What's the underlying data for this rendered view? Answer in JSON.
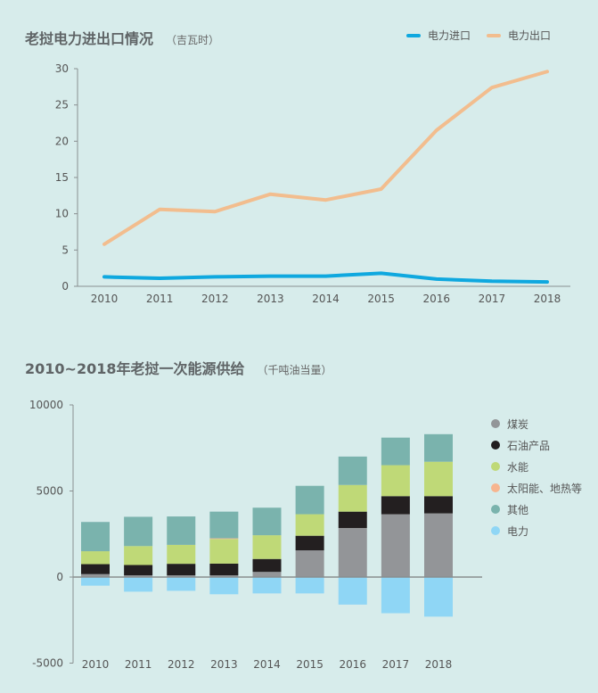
{
  "chart_data": [
    {
      "type": "line",
      "title": "老挝电力进出口情况",
      "unit": "（吉瓦时）",
      "xlabel": "",
      "ylabel": "",
      "ylim": [
        0,
        30
      ],
      "yticks": [
        "0",
        "5",
        "10",
        "15",
        "20",
        "25",
        "30"
      ],
      "categories": [
        "2010",
        "2011",
        "2012",
        "2013",
        "2014",
        "2015",
        "2016",
        "2017",
        "2018"
      ],
      "legend_position": "top-right",
      "series": [
        {
          "name": "电力进口",
          "color": "#0fa8df",
          "values": [
            1.3,
            1.1,
            1.3,
            1.4,
            1.4,
            1.8,
            1.0,
            0.7,
            0.6
          ]
        },
        {
          "name": "电力出口",
          "color": "#f2bd8e",
          "values": [
            5.8,
            10.6,
            10.3,
            12.7,
            11.9,
            13.4,
            21.5,
            27.4,
            29.6
          ]
        }
      ]
    },
    {
      "type": "bar",
      "stacked": true,
      "title": "2010~2018年老挝一次能源供给",
      "unit": "（千吨油当量）",
      "xlabel": "",
      "ylabel": "",
      "ylim": [
        -5000,
        10000
      ],
      "yticks": [
        "-5000",
        "0",
        "5000",
        "10000"
      ],
      "categories": [
        "2010",
        "2011",
        "2012",
        "2013",
        "2014",
        "2015",
        "2016",
        "2017",
        "2018"
      ],
      "legend_position": "right",
      "series": [
        {
          "name": "煤炭",
          "color": "#939598",
          "values": [
            170,
            100,
            100,
            100,
            300,
            1550,
            2850,
            3650,
            3700
          ]
        },
        {
          "name": "石油产品",
          "color": "#231f20",
          "values": [
            580,
            600,
            670,
            680,
            750,
            850,
            950,
            1050,
            1000
          ]
        },
        {
          "name": "水能",
          "color": "#bfd977",
          "values": [
            750,
            1100,
            1100,
            1430,
            1380,
            1250,
            1550,
            1800,
            2000
          ]
        },
        {
          "name": "太阳能、地热等",
          "color": "#f7b58f",
          "values": [
            0,
            0,
            0,
            40,
            0,
            0,
            0,
            0,
            0
          ]
        },
        {
          "name": "其他",
          "color": "#7ab3ad",
          "values": [
            1700,
            1700,
            1650,
            1550,
            1600,
            1650,
            1650,
            1600,
            1600
          ]
        },
        {
          "name": "电力",
          "color": "#8fd6f5",
          "values": [
            -500,
            -850,
            -800,
            -1000,
            -950,
            -950,
            -1600,
            -2100,
            -2300
          ]
        }
      ]
    }
  ]
}
